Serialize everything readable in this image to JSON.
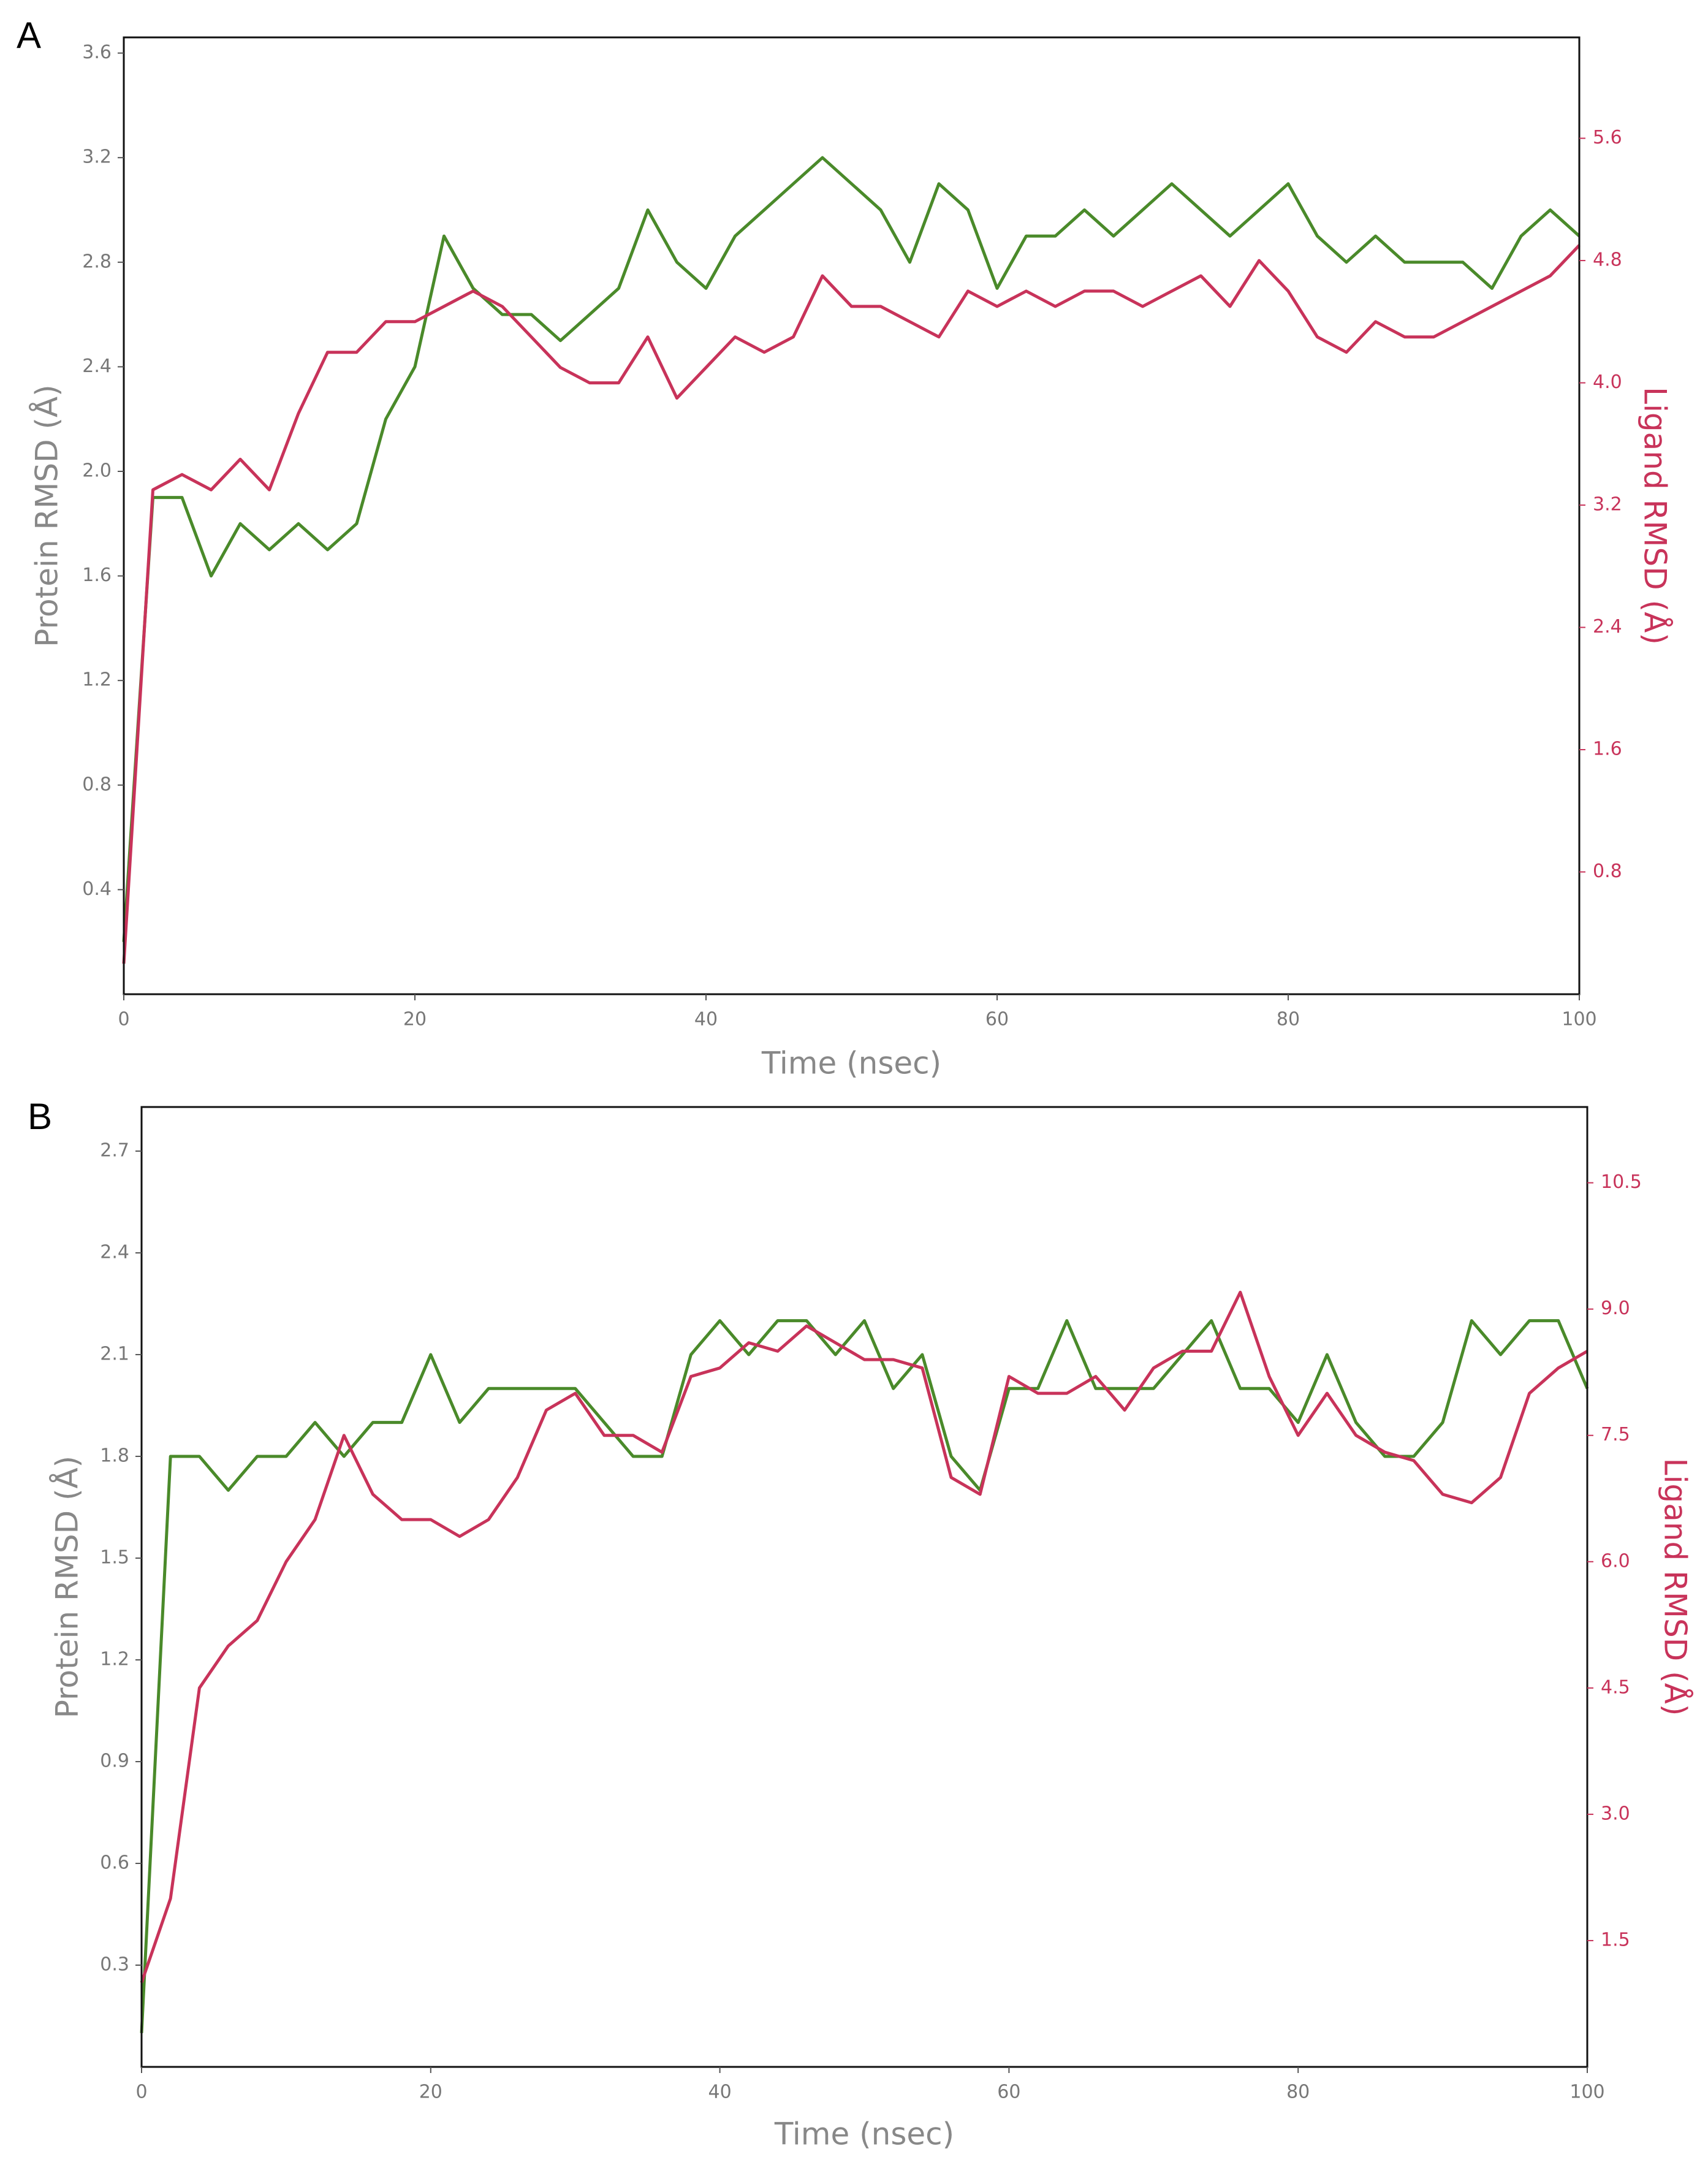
{
  "chart_data": [
    {
      "type": "line",
      "label": "A",
      "x": [
        0,
        2,
        4,
        6,
        8,
        10,
        12,
        14,
        16,
        18,
        20,
        22,
        24,
        26,
        28,
        30,
        32,
        34,
        36,
        38,
        40,
        42,
        44,
        46,
        48,
        50,
        52,
        54,
        56,
        58,
        60,
        62,
        64,
        66,
        68,
        70,
        72,
        74,
        76,
        78,
        80,
        82,
        84,
        86,
        88,
        90,
        92,
        94,
        96,
        98,
        100
      ],
      "xlabel": "Time (nsec)",
      "ylabel": "Protein RMSD (Å)",
      "y2label": "Ligand RMSD (Å)",
      "xlim": [
        0,
        100
      ],
      "xticks": [
        0,
        20,
        40,
        60,
        80,
        100
      ],
      "ylim": [
        0,
        3.66
      ],
      "yticks": [
        0.4,
        0.8,
        1.2,
        1.6,
        {
          "value": 2,
          "label": "2.0"
        },
        2.4,
        2.8,
        3.2,
        3.6
      ],
      "y2lim": [
        0,
        6.26
      ],
      "y2ticks": [
        0.8,
        1.6,
        2.4,
        3.2,
        {
          "value": 4,
          "label": "4.0"
        },
        4.8,
        5.6
      ],
      "series": [
        {
          "color": "#4a8a2a",
          "values": [
            0.2,
            1.9,
            1.9,
            1.6,
            1.8,
            1.7,
            1.8,
            1.7,
            1.8,
            2.2,
            2.4,
            2.9,
            2.7,
            2.6,
            2.6,
            2.5,
            2.6,
            2.7,
            3.0,
            2.8,
            2.7,
            2.9,
            3.0,
            3.1,
            3.2,
            3.1,
            3.0,
            2.8,
            3.1,
            3.0,
            2.7,
            2.9,
            2.9,
            3.0,
            2.9,
            3.0,
            3.1,
            3.0,
            2.9,
            3.0,
            3.1,
            2.9,
            2.8,
            2.9,
            2.8,
            2.8,
            2.8,
            2.7,
            2.9,
            3.0,
            2.9
          ]
        },
        {
          "color": "#c8335a",
          "axis": "y2",
          "values": [
            0.2,
            3.3,
            3.4,
            3.3,
            3.5,
            3.3,
            3.8,
            4.2,
            4.2,
            4.4,
            4.4,
            4.5,
            4.6,
            4.5,
            4.3,
            4.1,
            4.0,
            4.0,
            4.3,
            3.9,
            4.1,
            4.3,
            4.2,
            4.3,
            4.7,
            4.5,
            4.5,
            4.4,
            4.3,
            4.6,
            4.5,
            4.6,
            4.5,
            4.6,
            4.6,
            4.5,
            4.6,
            4.7,
            4.5,
            4.8,
            4.6,
            4.3,
            4.2,
            4.4,
            4.3,
            4.3,
            4.4,
            4.5,
            4.6,
            4.7,
            4.9
          ]
        }
      ]
    },
    {
      "type": "line",
      "label": "B",
      "x": [
        0,
        2,
        4,
        6,
        8,
        10,
        12,
        14,
        16,
        18,
        20,
        22,
        24,
        26,
        28,
        30,
        32,
        34,
        36,
        38,
        40,
        42,
        44,
        46,
        48,
        50,
        52,
        54,
        56,
        58,
        60,
        62,
        64,
        66,
        68,
        70,
        72,
        74,
        76,
        78,
        80,
        82,
        84,
        86,
        88,
        90,
        92,
        94,
        96,
        98,
        100
      ],
      "xlabel": "Time (nsec)",
      "ylabel": "Protein RMSD (Å)",
      "y2label": "Ligand RMSD (Å)",
      "xlim": [
        0,
        100
      ],
      "xticks": [
        0,
        20,
        40,
        60,
        80,
        100
      ],
      "ylim": [
        0,
        2.83
      ],
      "yticks": [
        0.3,
        0.6,
        0.9,
        1.2,
        1.5,
        1.8,
        2.1,
        2.4,
        2.7
      ],
      "y2lim": [
        0,
        11.4
      ],
      "y2ticks": [
        1.5,
        {
          "value": 3,
          "label": "3.0"
        },
        4.5,
        {
          "value": 6,
          "label": "6.0"
        },
        7.5,
        {
          "value": 9,
          "label": "9.0"
        },
        10.5
      ],
      "series": [
        {
          "color": "#4a8a2a",
          "values": [
            0.1,
            1.8,
            1.8,
            1.7,
            1.8,
            1.8,
            1.9,
            1.8,
            1.9,
            1.9,
            2.1,
            1.9,
            2.0,
            2.0,
            2.0,
            2.0,
            1.9,
            1.8,
            1.8,
            2.1,
            2.2,
            2.1,
            2.2,
            2.2,
            2.1,
            2.2,
            2.0,
            2.1,
            1.8,
            1.7,
            2.0,
            2.0,
            2.2,
            2.0,
            2.0,
            2.0,
            2.1,
            2.2,
            2.0,
            2.0,
            1.9,
            2.1,
            1.9,
            1.8,
            1.8,
            1.9,
            2.2,
            2.1,
            2.2,
            2.2,
            2.0
          ]
        },
        {
          "color": "#c8335a",
          "axis": "y2",
          "values": [
            1.0,
            2.0,
            4.5,
            5.0,
            5.3,
            6.0,
            6.5,
            7.5,
            6.8,
            6.5,
            6.5,
            6.3,
            6.5,
            7.0,
            7.8,
            8.0,
            7.5,
            7.5,
            7.3,
            8.2,
            8.3,
            8.6,
            8.5,
            8.8,
            8.6,
            8.4,
            8.4,
            8.3,
            7.0,
            6.8,
            8.2,
            8.0,
            8.0,
            8.2,
            7.8,
            8.3,
            8.5,
            8.5,
            9.2,
            8.2,
            7.5,
            8.0,
            7.5,
            7.3,
            7.2,
            6.8,
            6.7,
            7.0,
            8.0,
            8.3,
            8.5
          ]
        }
      ]
    }
  ]
}
